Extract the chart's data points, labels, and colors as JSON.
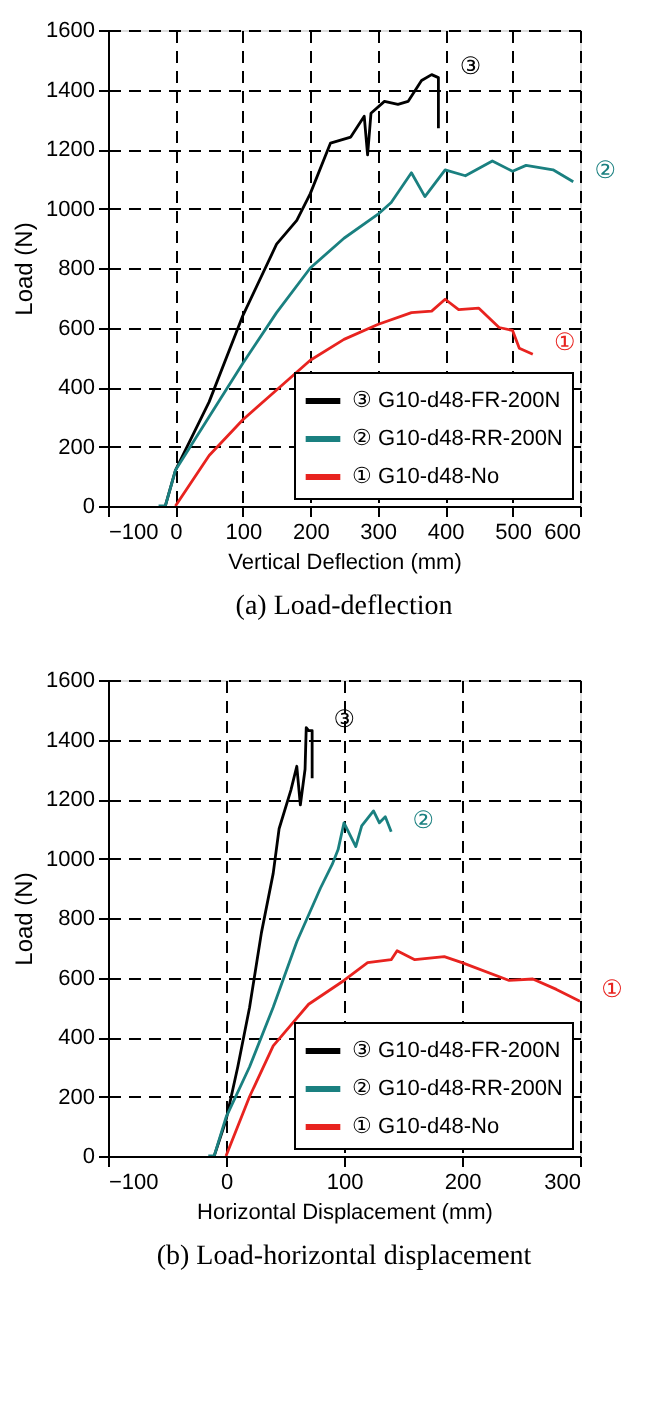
{
  "chart_data": [
    {
      "type": "line",
      "title": "(a) Load-deflection",
      "xlabel": "Vertical Deflection (mm)",
      "ylabel": "Load (N)",
      "xlim": [
        -100,
        600
      ],
      "xticks": [
        -100,
        0,
        100,
        200,
        300,
        400,
        500,
        600
      ],
      "ylim": [
        0,
        1600
      ],
      "yticks": [
        0,
        200,
        400,
        600,
        800,
        1000,
        1200,
        1400,
        1600
      ],
      "grid": true,
      "legend": "bottom right",
      "marker": "none",
      "line_style": "solid",
      "annotations": [
        "③",
        "②",
        "①"
      ],
      "series": [
        {
          "name": "③ G10-d48-FR-200N",
          "color": "#000000",
          "x": [
            -15,
            0,
            50,
            100,
            150,
            180,
            200,
            230,
            260,
            280,
            285,
            290,
            310,
            330,
            345,
            365,
            380,
            390,
            390
          ],
          "values": [
            0,
            120,
            350,
            640,
            880,
            960,
            1050,
            1220,
            1240,
            1310,
            1180,
            1320,
            1360,
            1350,
            1360,
            1430,
            1450,
            1440,
            1270
          ]
        },
        {
          "name": "② G10-d48-RR-200N",
          "color": "#1a8080",
          "x": [
            -25,
            -15,
            0,
            50,
            100,
            150,
            200,
            250,
            300,
            320,
            350,
            370,
            400,
            430,
            470,
            500,
            520,
            560,
            590
          ],
          "values": [
            0,
            0,
            120,
            300,
            480,
            650,
            800,
            900,
            980,
            1020,
            1120,
            1040,
            1130,
            1110,
            1160,
            1125,
            1145,
            1130,
            1090
          ]
        },
        {
          "name": "① G10-d48-No",
          "color": "#e8231f",
          "x": [
            0,
            50,
            100,
            150,
            200,
            250,
            300,
            350,
            380,
            400,
            420,
            450,
            480,
            500,
            510,
            530
          ],
          "values": [
            0,
            170,
            290,
            390,
            490,
            560,
            610,
            650,
            655,
            695,
            660,
            665,
            600,
            590,
            530,
            510
          ]
        }
      ]
    },
    {
      "type": "line",
      "title": "(b) Load-horizontal displacement",
      "xlabel": "Horizontal Displacement (mm)",
      "ylabel": "Load (N)",
      "xlim": [
        -100,
        300
      ],
      "xticks": [
        -100,
        0,
        100,
        200,
        300
      ],
      "ylim": [
        0,
        1600
      ],
      "yticks": [
        0,
        200,
        400,
        600,
        800,
        1000,
        1200,
        1400,
        1600
      ],
      "grid": true,
      "legend": "bottom right",
      "marker": "none",
      "line_style": "solid",
      "annotations": [
        "③",
        "②",
        "①"
      ],
      "series": [
        {
          "name": "③ G10-d48-FR-200N",
          "color": "#000000",
          "x": [
            -10,
            0,
            10,
            20,
            30,
            40,
            45,
            55,
            60,
            63,
            67,
            68,
            70,
            73,
            73
          ],
          "values": [
            0,
            120,
            300,
            500,
            750,
            950,
            1100,
            1230,
            1310,
            1180,
            1300,
            1440,
            1430,
            1430,
            1270
          ]
        },
        {
          "name": "② G10-d48-RR-200N",
          "color": "#1a8080",
          "x": [
            -15,
            -10,
            0,
            20,
            40,
            60,
            80,
            90,
            95,
            100,
            110,
            115,
            125,
            130,
            135,
            140
          ],
          "values": [
            0,
            0,
            130,
            300,
            500,
            720,
            900,
            980,
            1030,
            1120,
            1040,
            1110,
            1160,
            1120,
            1140,
            1090
          ]
        },
        {
          "name": "① G10-d48-No",
          "color": "#e8231f",
          "x": [
            0,
            20,
            40,
            70,
            100,
            120,
            140,
            145,
            160,
            185,
            200,
            240,
            260,
            280,
            300
          ],
          "values": [
            0,
            200,
            370,
            510,
            590,
            650,
            660,
            690,
            660,
            670,
            650,
            590,
            595,
            560,
            520
          ]
        }
      ]
    }
  ]
}
